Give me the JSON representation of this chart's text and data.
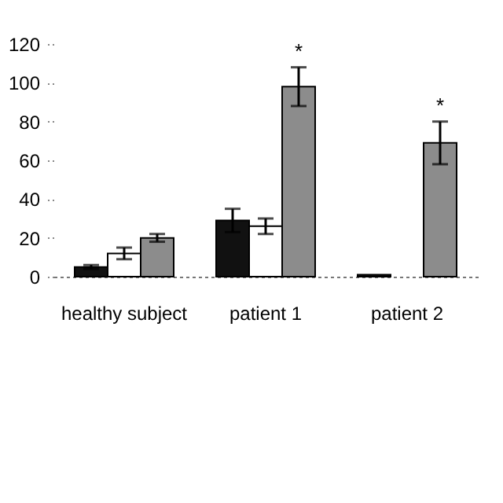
{
  "chart_data": {
    "type": "bar",
    "categories": [
      "healthy subject",
      "patient 1",
      "patient 2"
    ],
    "series": [
      {
        "color": "#111111",
        "values": [
          5,
          29,
          1
        ],
        "errors": [
          1,
          6,
          null
        ]
      },
      {
        "color": "#ffffff",
        "values": [
          12,
          26,
          null
        ],
        "errors": [
          3,
          4,
          null
        ]
      },
      {
        "color": "#8c8c8c",
        "values": [
          20,
          98,
          69
        ],
        "errors": [
          2,
          10,
          11
        ]
      }
    ],
    "ylim": [
      0,
      120
    ],
    "yticks": [
      0,
      20,
      40,
      60,
      80,
      100,
      120
    ],
    "grid": false,
    "legend": false,
    "annotations": [
      "*",
      "*"
    ]
  }
}
